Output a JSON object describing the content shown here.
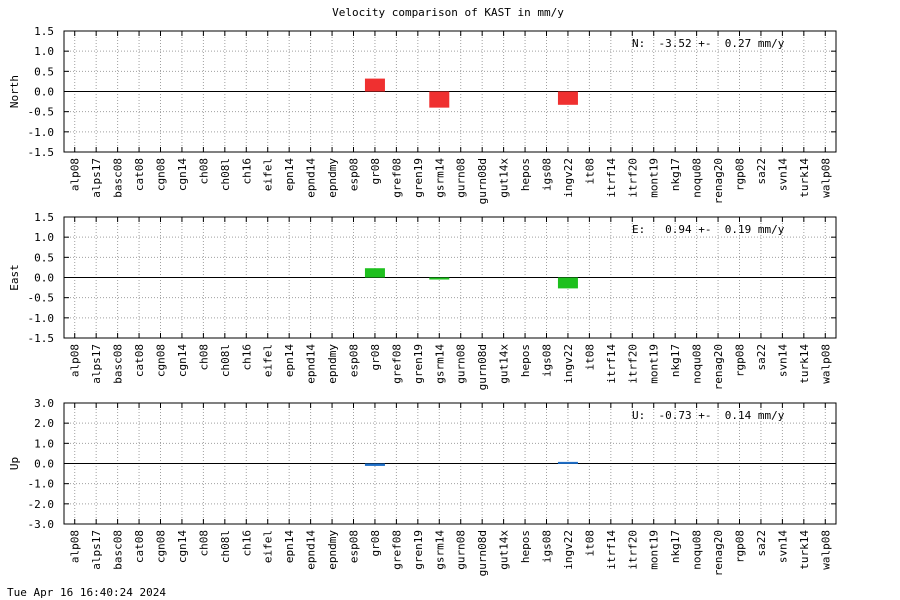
{
  "title": "Velocity comparison of KAST in mm/y",
  "timestamp": "Tue Apr 16 16:40:24 2024",
  "categories": [
    "alp08",
    "alps17",
    "basc08",
    "cat08",
    "cgn08",
    "cgn14",
    "ch08",
    "ch08l",
    "ch16",
    "eifel",
    "epn14",
    "epnd14",
    "epndmy",
    "esp08",
    "gr08",
    "gref08",
    "gren19",
    "gsrm14",
    "gurn08",
    "gurn08d",
    "gut14x",
    "hepos",
    "igs08",
    "ingv22",
    "it08",
    "itrf14",
    "itrf20",
    "mont19",
    "nkg17",
    "noqu08",
    "renag20",
    "rgp08",
    "sa22",
    "svn14",
    "turk14",
    "walp08"
  ],
  "chart_data": [
    {
      "type": "bar",
      "ylabel": "North",
      "annotation": "N:  -3.52 +-  0.27 mm/y",
      "ylim": [
        -1.5,
        1.5
      ],
      "yticks": [
        "1.5",
        "1.0",
        "0.5",
        "0.0",
        "-0.5",
        "-1.0",
        "-1.5"
      ],
      "color": "#ef3030",
      "grid": true,
      "values": {
        "gr08": 0.32,
        "gsrm14": -0.4,
        "ingv22": -0.33
      }
    },
    {
      "type": "bar",
      "ylabel": "East",
      "annotation": "E:   0.94 +-  0.19 mm/y",
      "ylim": [
        -1.5,
        1.5
      ],
      "yticks": [
        "1.5",
        "1.0",
        "0.5",
        "0.0",
        "-0.5",
        "-1.0",
        "-1.5"
      ],
      "color": "#1ec01e",
      "grid": true,
      "values": {
        "gr08": 0.23,
        "gsrm14": -0.05,
        "ingv22": -0.27
      }
    },
    {
      "type": "bar",
      "ylabel": "Up",
      "annotation": "U:  -0.73 +-  0.14 mm/y",
      "ylim": [
        -3.0,
        3.0
      ],
      "yticks": [
        "3.0",
        "2.0",
        "1.0",
        "0.0",
        "-1.0",
        "-2.0",
        "-3.0"
      ],
      "color": "#1f6fc8",
      "grid": true,
      "values": {
        "gr08": -0.12,
        "ingv22": 0.08
      }
    }
  ]
}
